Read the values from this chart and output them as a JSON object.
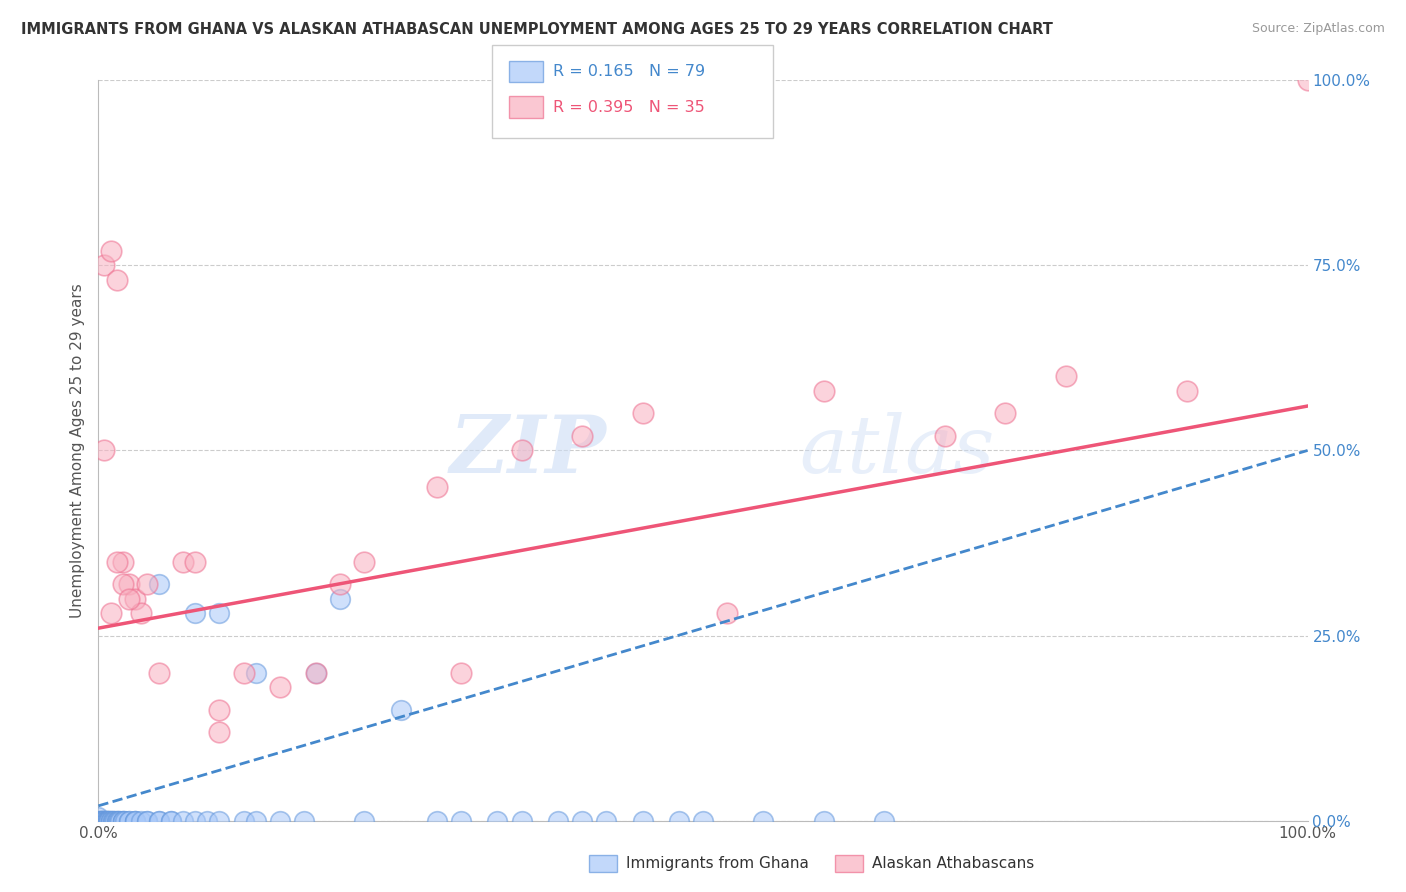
{
  "title": "IMMIGRANTS FROM GHANA VS ALASKAN ATHABASCAN UNEMPLOYMENT AMONG AGES 25 TO 29 YEARS CORRELATION CHART",
  "source": "Source: ZipAtlas.com",
  "ylabel": "Unemployment Among Ages 25 to 29 years",
  "ytick_labels": [
    "0.0%",
    "25.0%",
    "50.0%",
    "75.0%",
    "100.0%"
  ],
  "ytick_values": [
    0.0,
    0.25,
    0.5,
    0.75,
    1.0
  ],
  "xlim": [
    0.0,
    1.0
  ],
  "ylim": [
    0.0,
    1.0
  ],
  "legend_r_blue": "R = 0.165",
  "legend_n_blue": "N = 79",
  "legend_r_pink": "R = 0.395",
  "legend_n_pink": "N = 35",
  "blue_color": "#a8c8f8",
  "pink_color": "#f8b0c0",
  "blue_edge_color": "#6699dd",
  "pink_edge_color": "#ee7090",
  "blue_line_color": "#4488cc",
  "pink_line_color": "#ee5577",
  "watermark_zip": "ZIP",
  "watermark_atlas": "atlas",
  "grid_color": "#cccccc",
  "pink_scatter_x": [
    0.005,
    0.01,
    0.015,
    0.02,
    0.025,
    0.03,
    0.035,
    0.04,
    0.005,
    0.01,
    0.015,
    0.02,
    0.025,
    0.05,
    0.07,
    0.08,
    0.1,
    0.12,
    0.15,
    0.18,
    0.22,
    0.28,
    0.35,
    0.4,
    0.45,
    0.52,
    0.6,
    0.7,
    0.75,
    0.8,
    0.9,
    1.0,
    0.3,
    0.2,
    0.1
  ],
  "pink_scatter_y": [
    0.75,
    0.77,
    0.73,
    0.35,
    0.32,
    0.3,
    0.28,
    0.32,
    0.5,
    0.28,
    0.35,
    0.32,
    0.3,
    0.2,
    0.35,
    0.35,
    0.15,
    0.2,
    0.18,
    0.2,
    0.35,
    0.45,
    0.5,
    0.52,
    0.55,
    0.28,
    0.58,
    0.52,
    0.55,
    0.6,
    0.58,
    1.0,
    0.2,
    0.32,
    0.12
  ],
  "blue_scatter_x": [
    0.0,
    0.0,
    0.0,
    0.001,
    0.001,
    0.002,
    0.002,
    0.003,
    0.003,
    0.004,
    0.004,
    0.005,
    0.005,
    0.005,
    0.006,
    0.006,
    0.007,
    0.007,
    0.008,
    0.008,
    0.009,
    0.009,
    0.01,
    0.01,
    0.01,
    0.012,
    0.012,
    0.013,
    0.014,
    0.015,
    0.015,
    0.016,
    0.017,
    0.018,
    0.02,
    0.02,
    0.02,
    0.022,
    0.025,
    0.025,
    0.03,
    0.03,
    0.03,
    0.035,
    0.04,
    0.04,
    0.05,
    0.05,
    0.06,
    0.06,
    0.07,
    0.08,
    0.09,
    0.1,
    0.12,
    0.13,
    0.15,
    0.17,
    0.2,
    0.22,
    0.25,
    0.28,
    0.3,
    0.33,
    0.35,
    0.38,
    0.4,
    0.42,
    0.45,
    0.48,
    0.5,
    0.55,
    0.6,
    0.65,
    0.05,
    0.08,
    0.1,
    0.13,
    0.18
  ],
  "blue_scatter_y": [
    0.0,
    0.0,
    0.005,
    0.0,
    0.0,
    0.0,
    0.0,
    0.0,
    0.0,
    0.0,
    0.0,
    0.0,
    0.0,
    0.0,
    0.0,
    0.0,
    0.0,
    0.0,
    0.0,
    0.0,
    0.0,
    0.0,
    0.0,
    0.0,
    0.0,
    0.0,
    0.0,
    0.0,
    0.0,
    0.0,
    0.0,
    0.0,
    0.0,
    0.0,
    0.0,
    0.0,
    0.0,
    0.0,
    0.0,
    0.0,
    0.0,
    0.0,
    0.0,
    0.0,
    0.0,
    0.0,
    0.0,
    0.0,
    0.0,
    0.0,
    0.0,
    0.0,
    0.0,
    0.0,
    0.0,
    0.0,
    0.0,
    0.0,
    0.3,
    0.0,
    0.15,
    0.0,
    0.0,
    0.0,
    0.0,
    0.0,
    0.0,
    0.0,
    0.0,
    0.0,
    0.0,
    0.0,
    0.0,
    0.0,
    0.32,
    0.28,
    0.28,
    0.2,
    0.2
  ],
  "pink_line_start_y": 0.26,
  "pink_line_end_y": 0.56,
  "blue_line_start_y": 0.02,
  "blue_line_end_y": 0.5
}
